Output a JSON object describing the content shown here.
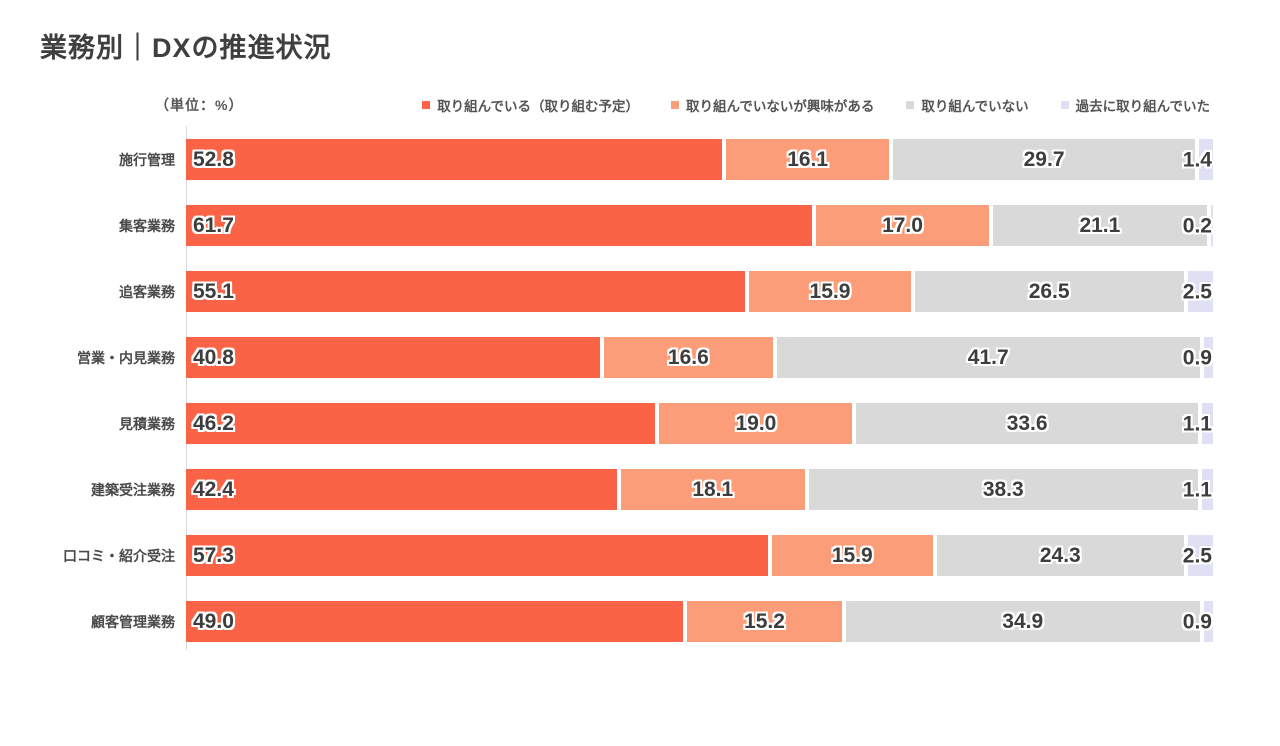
{
  "header": {
    "title": "業務別｜DXの推進状況",
    "unit_label": "（単位：%）"
  },
  "chart_data": {
    "type": "bar",
    "orientation": "horizontal-stacked",
    "unit": "%",
    "title": "業務別｜DXの推進状況",
    "xlim": [
      0,
      100
    ],
    "legend_position": "top",
    "grid": false,
    "categories": [
      "施行管理",
      "集客業務",
      "追客業務",
      "営業・内見業務",
      "見積業務",
      "建築受注業務",
      "口コミ・紹介受注",
      "顧客管理業務"
    ],
    "series": [
      {
        "name": "取り組んでいる（取り組む予定）",
        "color": "#fb6347",
        "values": [
          52.8,
          61.7,
          55.1,
          40.8,
          46.2,
          42.4,
          57.3,
          49.0
        ]
      },
      {
        "name": "取り組んでいないが興味がある",
        "color": "#fb9d79",
        "values": [
          16.1,
          17.0,
          15.9,
          16.6,
          19.0,
          18.1,
          15.9,
          15.2
        ]
      },
      {
        "name": "取り組んでいない",
        "color": "#d9d9d9",
        "values": [
          29.7,
          21.1,
          26.5,
          41.7,
          33.6,
          38.3,
          24.3,
          34.9
        ]
      },
      {
        "name": "過去に取り組んでいた",
        "color": "#dfe0f3",
        "values": [
          1.4,
          0.2,
          2.5,
          0.9,
          1.1,
          1.1,
          2.5,
          0.9
        ]
      }
    ],
    "colors": {
      "axis_line": "#d9d9d9",
      "value_text": "#3d3d3d",
      "label_text": "#4a4a4a",
      "title_text": "#3f3f3f"
    }
  }
}
